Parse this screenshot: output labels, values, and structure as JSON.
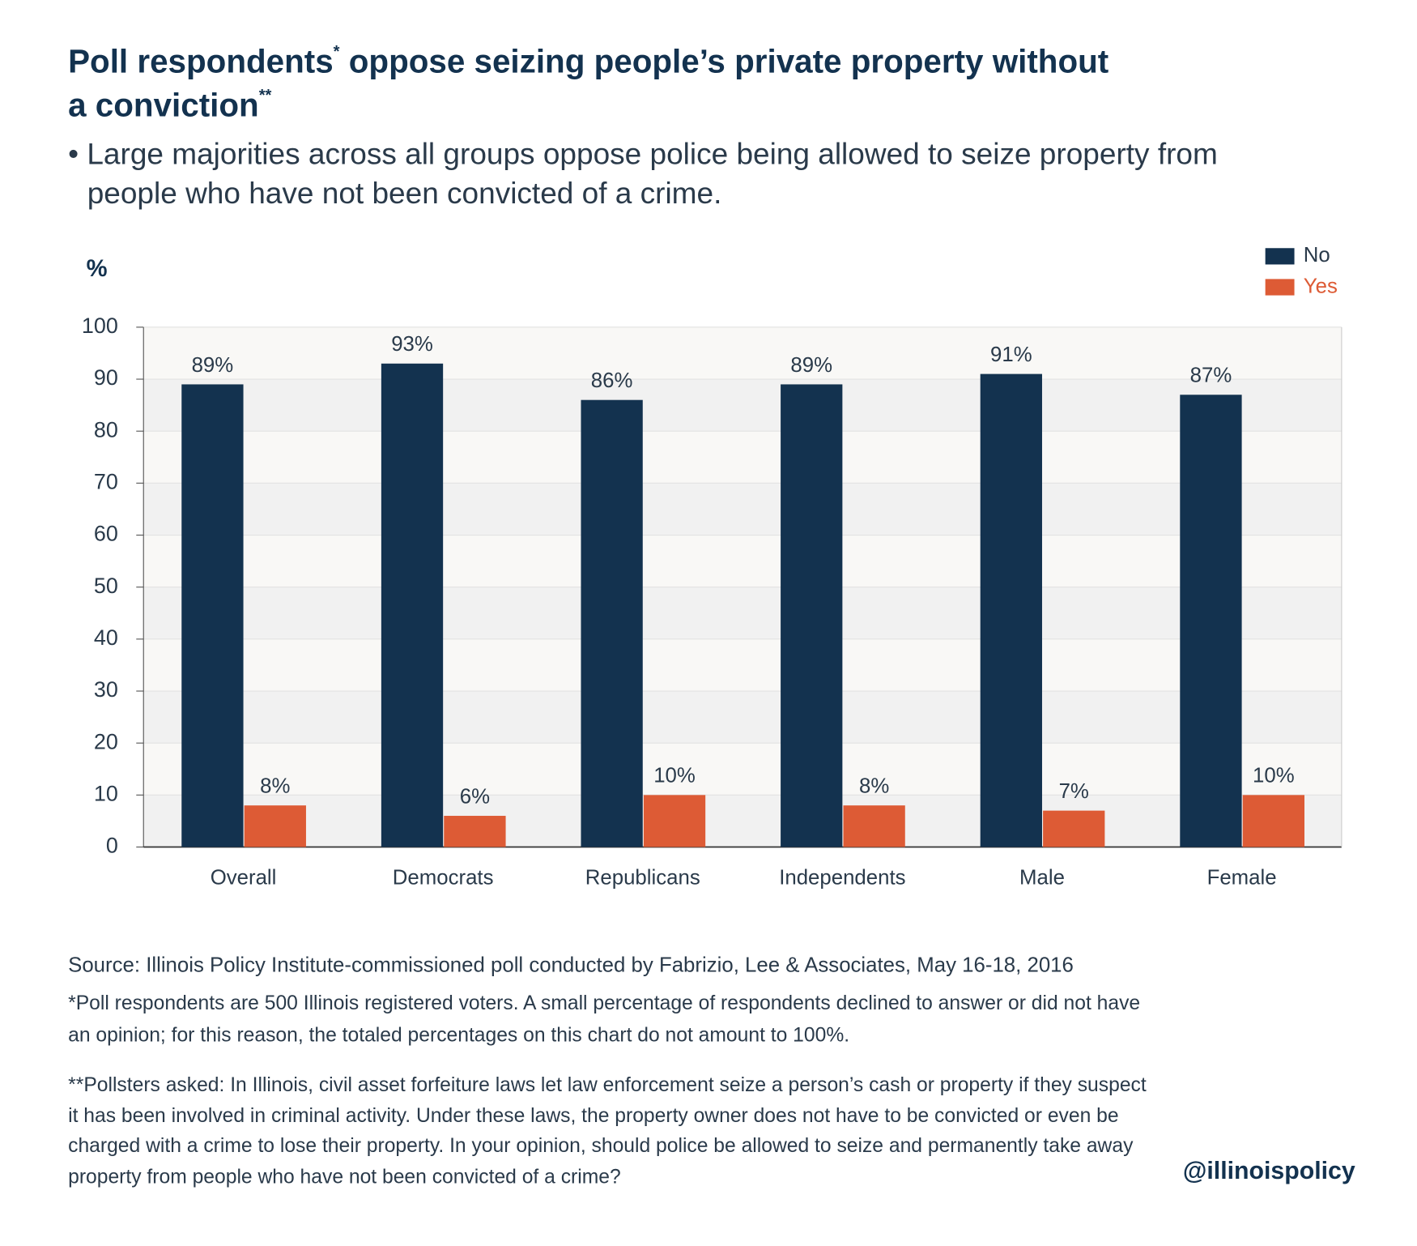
{
  "chart_data": {
    "type": "bar",
    "title": [
      "Poll respondents",
      "*",
      " oppose seizing people’s private property without",
      "a conviction",
      "**"
    ],
    "subtitle": [
      "• Large majorities across all groups oppose police being allowed to seize property from",
      "people who have not been convicted of a crime."
    ],
    "y_label": "%",
    "categories": [
      "Overall",
      "Democrats",
      "Republicans",
      "Independents",
      "Male",
      "Female"
    ],
    "series": [
      {
        "name": "No",
        "color": "#13324f",
        "values": [
          89,
          93,
          86,
          89,
          91,
          87
        ],
        "value_labels": [
          "89%",
          "93%",
          "86%",
          "89%",
          "91%",
          "87%"
        ]
      },
      {
        "name": "Yes",
        "color": "#dd5b35",
        "values": [
          8,
          6,
          10,
          8,
          7,
          10
        ],
        "value_labels": [
          "8%",
          "6%",
          "10%",
          "8%",
          "7%",
          "10%"
        ]
      }
    ],
    "ylim": [
      0,
      100
    ],
    "yticks": [
      0,
      10,
      20,
      30,
      40,
      50,
      60,
      70,
      80,
      90,
      100
    ],
    "grid": true,
    "legend": "top-right",
    "source": "Source: Illinois Policy Institute-commissioned poll conducted by Fabrizio, Lee & Associates, May 16-18, 2016",
    "footnote1": [
      "*Poll respondents are 500 Illinois registered voters. A small percentage of respondents declined to answer or did not have",
      "an opinion; for this reason, the totaled percentages on this chart do not amount to 100%."
    ],
    "footnote2": [
      "**Pollsters asked: In Illinois, civil asset forfeiture laws let law enforcement seize a person’s cash or property if they suspect",
      "it has been involved in criminal activity. Under these laws, the property owner does not have to be convicted or even be",
      "charged with a crime to lose their property. In your opinion, should police be allowed to seize and permanently take away",
      "property from people who have not been convicted of a crime?"
    ],
    "credit": "@illinoispolicy"
  }
}
